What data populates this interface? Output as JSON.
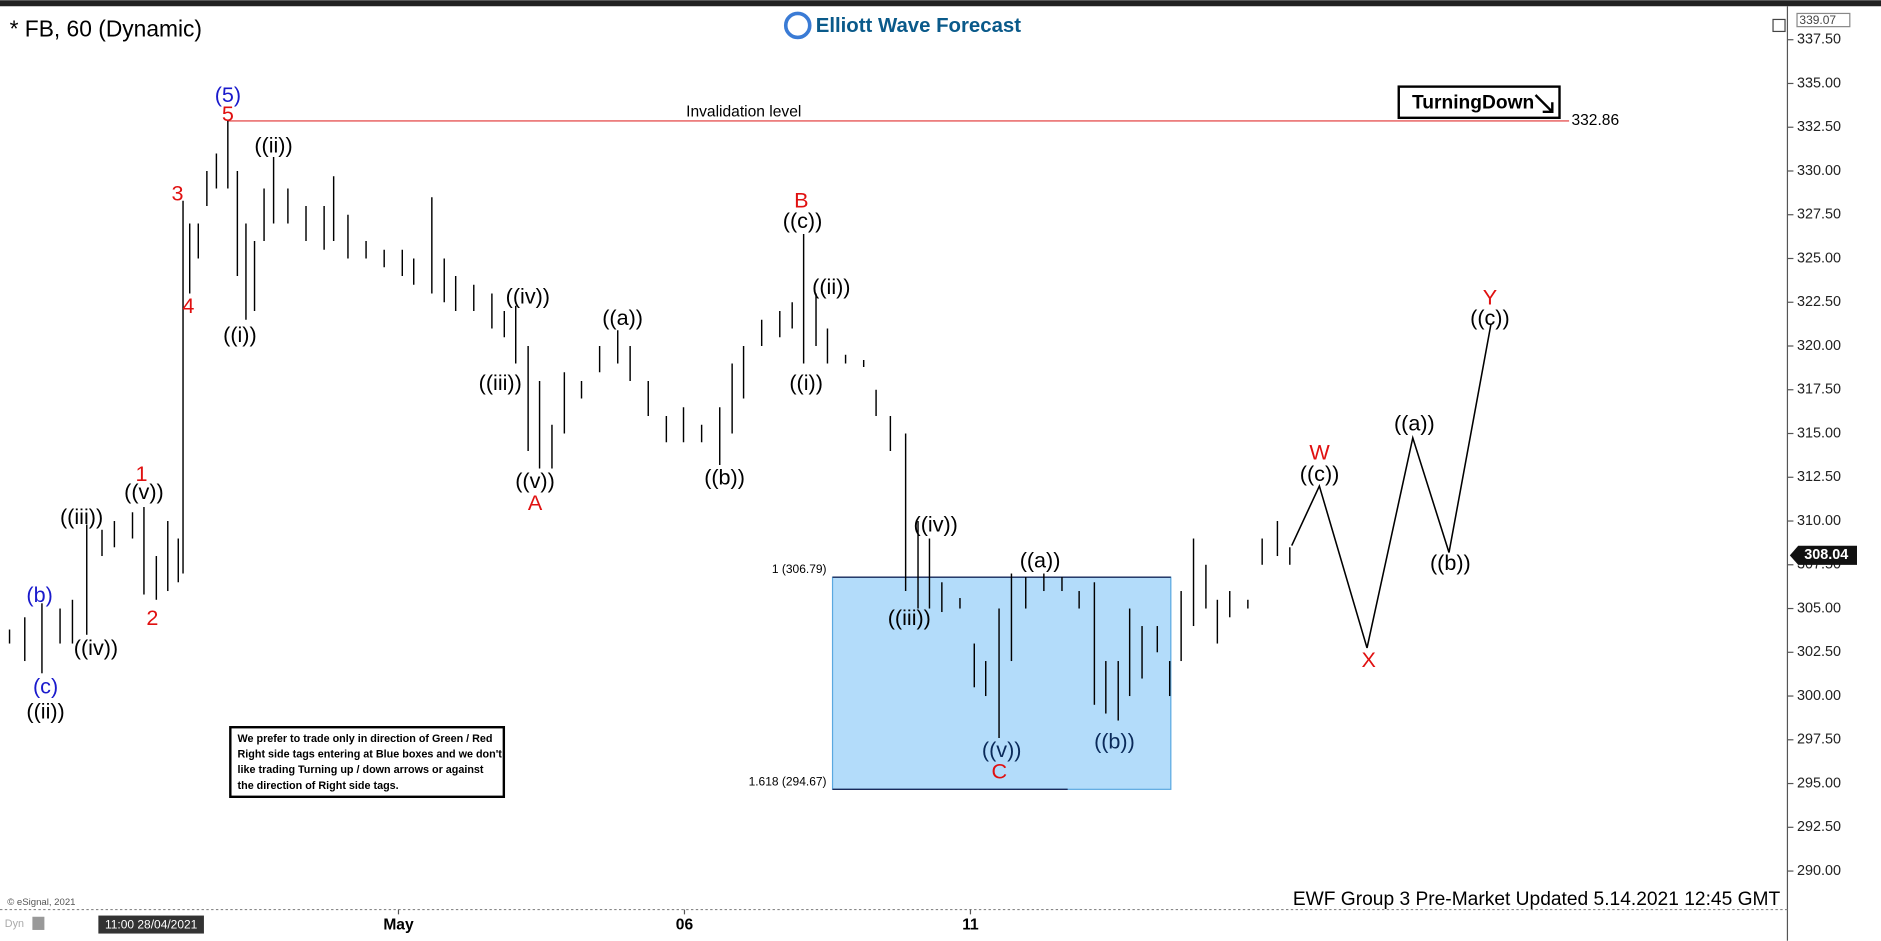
{
  "header": {
    "symbol": "* FB, 60 (Dynamic)",
    "brand": "Elliott Wave Forecast",
    "tag": "TurningDown",
    "footer": "EWF Group 3 Pre-Market Updated 5.14.2021 12:45 GMT",
    "copyright": "© eSignal, 2021",
    "cursor_time": "11:00 28/04/2021",
    "mode": "Dyn"
  },
  "notice": [
    "We prefer to trade only in direction of Green / Red",
    "Right side tags entering at Blue boxes and we don't",
    "like trading Turning up / down arrows or against",
    "the direction of Right side tags."
  ],
  "chart_data": {
    "type": "ohlc",
    "title": "* FB, 60 (Dynamic)",
    "xlim": [
      -4.18,
      14.57
    ],
    "xticks": [
      {
        "value": 0,
        "label": "May"
      },
      {
        "value": 3,
        "label": "06"
      },
      {
        "value": 6,
        "label": "11"
      }
    ],
    "ylim": [
      287.8,
      339.07
    ],
    "yticks": [
      {
        "value": 290,
        "label": "290.00"
      },
      {
        "value": 292.5,
        "label": "292.50"
      },
      {
        "value": 295,
        "label": "295.00"
      },
      {
        "value": 297.5,
        "label": "297.50"
      },
      {
        "value": 300,
        "label": "300.00"
      },
      {
        "value": 302.5,
        "label": "302.50"
      },
      {
        "value": 305,
        "label": "305.00"
      },
      {
        "value": 307.5,
        "label": "307.50"
      },
      {
        "value": 310,
        "label": "310.00"
      },
      {
        "value": 312.5,
        "label": "312.50"
      },
      {
        "value": 315,
        "label": "315.00"
      },
      {
        "value": 317.5,
        "label": "317.50"
      },
      {
        "value": 320,
        "label": "320.00"
      },
      {
        "value": 322.5,
        "label": "322.50"
      },
      {
        "value": 325,
        "label": "325.00"
      },
      {
        "value": 327.5,
        "label": "327.50"
      },
      {
        "value": 330,
        "label": "330.00"
      },
      {
        "value": 332.5,
        "label": "332.50"
      },
      {
        "value": 335,
        "label": "335.00"
      },
      {
        "value": 337.5,
        "label": "337.50"
      }
    ],
    "color": "#000000",
    "x": [
      -4.08,
      -3.92,
      -3.74,
      -3.55,
      -3.42,
      -3.27,
      -3.11,
      -2.98,
      -2.79,
      -2.67,
      -2.54,
      -2.42,
      -2.31,
      -2.26,
      -2.19,
      -2.1,
      -2.01,
      -1.91,
      -1.79,
      -1.69,
      -1.6,
      -1.51,
      -1.41,
      -1.31,
      -1.16,
      -0.97,
      -0.78,
      -0.68,
      -0.53,
      -0.34,
      -0.15,
      0.04,
      0.16,
      0.35,
      0.48,
      0.6,
      0.79,
      0.98,
      1.11,
      1.23,
      1.36,
      1.48,
      1.61,
      1.74,
      1.92,
      2.11,
      2.3,
      2.43,
      2.62,
      2.81,
      2.99,
      3.18,
      3.37,
      3.5,
      3.62,
      3.81,
      4.0,
      4.13,
      4.25,
      4.38,
      4.5,
      4.69,
      4.88,
      5.01,
      5.16,
      5.32,
      5.45,
      5.57,
      5.7,
      5.89,
      6.04,
      6.16,
      6.3,
      6.43,
      6.58,
      6.77,
      6.96,
      7.14,
      7.3,
      7.42,
      7.55,
      7.67,
      7.8,
      7.96,
      8.09,
      8.21,
      8.34,
      8.47,
      8.59,
      8.72,
      8.91,
      9.06,
      9.22,
      9.35
    ],
    "high": [
      303.8,
      304.5,
      305.3,
      305,
      305.5,
      309.8,
      309.5,
      310,
      310.5,
      310.8,
      308,
      310,
      309,
      328.3,
      327,
      327,
      330,
      331,
      332.9,
      330,
      327,
      326,
      329,
      330.8,
      329,
      328,
      328,
      329.7,
      327.5,
      326,
      325.5,
      325.5,
      325,
      328.5,
      325,
      324,
      323.5,
      323,
      322,
      322.3,
      320,
      318,
      315.5,
      318.5,
      318,
      320,
      320.9,
      320,
      318,
      316,
      316.5,
      315.5,
      316.5,
      319,
      320,
      321.5,
      322,
      322.5,
      326.4,
      323,
      321,
      319.5,
      319.2,
      317.5,
      316,
      315,
      310,
      309,
      306.5,
      305.6,
      303,
      302,
      305,
      307,
      306.8,
      307,
      306.8,
      306,
      306.5,
      302,
      302,
      305,
      304,
      304,
      302,
      306,
      309,
      307.5,
      305.5,
      306,
      305.5,
      309,
      310,
      308.5
    ],
    "low": [
      303,
      302,
      301.3,
      303,
      303,
      303.5,
      308,
      308.5,
      309,
      305.8,
      305.5,
      306,
      306.5,
      307,
      323,
      325,
      328,
      329,
      329,
      324,
      321.5,
      322,
      326,
      327,
      327,
      326,
      325.5,
      326,
      325,
      325,
      324.5,
      324,
      323.5,
      323,
      322.5,
      322,
      322,
      321,
      320.5,
      319,
      314,
      313,
      313,
      315,
      317,
      318.5,
      319,
      318,
      316,
      314.5,
      314.5,
      314.5,
      313.2,
      315,
      317,
      320,
      320.5,
      321,
      319,
      320,
      319,
      319,
      318.8,
      316,
      314,
      306,
      305,
      305,
      304.8,
      305,
      300.5,
      300,
      297.6,
      302,
      305,
      306,
      306,
      305,
      299.5,
      299,
      298.6,
      300,
      301,
      302.5,
      300,
      302,
      304,
      305,
      303,
      304.5,
      305,
      307.5,
      308,
      307.5
    ],
    "projection": {
      "x": [
        9.37,
        9.66,
        10.16,
        10.64,
        11.02,
        11.46
      ],
      "y": [
        308.6,
        312,
        302.75,
        314.75,
        308.2,
        321.25
      ],
      "color": "#000000"
    },
    "invalidation": {
      "label": "Invalidation level",
      "value": 332.86,
      "color": "#e03030"
    },
    "zone": {
      "color": "#b3dcfa",
      "levels": [
        {
          "value": 306.79,
          "label": "1 (306.79)"
        },
        {
          "value": 294.67,
          "label": "1.618 (294.67)"
        }
      ]
    },
    "last_price": 308.04,
    "waves": [
      {
        "text": "(5)",
        "color": "#1a1acc"
      },
      {
        "text": "5",
        "color": "#e01010"
      },
      {
        "text": "((ii))",
        "color": "#000000"
      },
      {
        "text": "3",
        "color": "#e01010"
      },
      {
        "text": "4",
        "color": "#e01010"
      },
      {
        "text": "((i))",
        "color": "#000000"
      },
      {
        "text": "1",
        "color": "#e01010"
      },
      {
        "text": "((v))",
        "color": "#000000"
      },
      {
        "text": "((iii))",
        "color": "#000000"
      },
      {
        "text": "2",
        "color": "#e01010"
      },
      {
        "text": "(b)",
        "color": "#1a1acc"
      },
      {
        "text": "((iv))",
        "color": "#000000"
      },
      {
        "text": "(c)",
        "color": "#1a1acc"
      },
      {
        "text": "((ii))",
        "color": "#000000"
      },
      {
        "text": "((iv))",
        "color": "#000000"
      },
      {
        "text": "((iii))",
        "color": "#000000"
      },
      {
        "text": "((v))",
        "color": "#000000"
      },
      {
        "text": "A",
        "color": "#e01010"
      },
      {
        "text": "((a))",
        "color": "#000000"
      },
      {
        "text": "((b))",
        "color": "#000000"
      },
      {
        "text": "B",
        "color": "#e01010"
      },
      {
        "text": "((c))",
        "color": "#000000"
      },
      {
        "text": "((ii))",
        "color": "#000000"
      },
      {
        "text": "((i))",
        "color": "#000000"
      },
      {
        "text": "((iv))",
        "color": "#000000"
      },
      {
        "text": "((iii))",
        "color": "#000000"
      },
      {
        "text": "((a))",
        "color": "#000000"
      },
      {
        "text": "((v))",
        "color": "#0a2a5a"
      },
      {
        "text": "C",
        "color": "#e01010"
      },
      {
        "text": "((b))",
        "color": "#0a2a5a"
      },
      {
        "text": "W",
        "color": "#e01010"
      },
      {
        "text": "((c))",
        "color": "#000000"
      },
      {
        "text": "X",
        "color": "#e01010"
      },
      {
        "text": "((a))",
        "color": "#000000"
      },
      {
        "text": "((b))",
        "color": "#000000"
      },
      {
        "text": "Y",
        "color": "#e01010"
      },
      {
        "text": "((c))",
        "color": "#000000"
      }
    ]
  }
}
